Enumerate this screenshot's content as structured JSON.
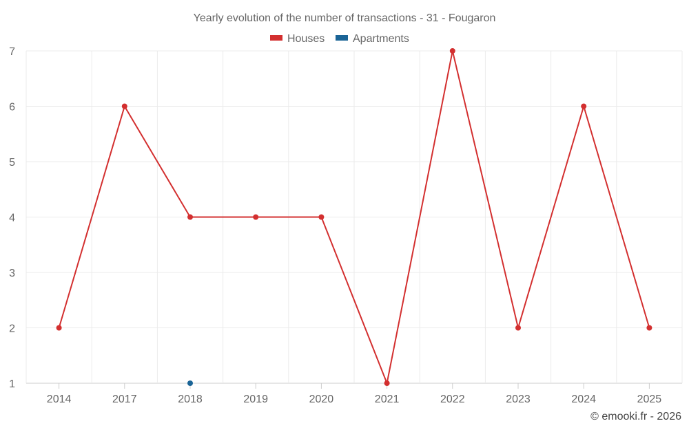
{
  "chart_data": {
    "type": "line",
    "title": "Yearly evolution of the number of transactions - 31 - Fougaron",
    "categories": [
      "2014",
      "2017",
      "2018",
      "2019",
      "2020",
      "2021",
      "2022",
      "2023",
      "2024",
      "2025"
    ],
    "series": [
      {
        "name": "Houses",
        "color": "#d32f2f",
        "values": [
          2,
          6,
          4,
          4,
          4,
          1,
          7,
          2,
          6,
          2
        ]
      },
      {
        "name": "Apartments",
        "color": "#1a6496",
        "values": [
          null,
          null,
          1,
          null,
          null,
          null,
          null,
          null,
          null,
          null
        ]
      }
    ],
    "yticks": [
      1,
      2,
      3,
      4,
      5,
      6,
      7
    ],
    "ylim": [
      1,
      7
    ],
    "legend_position": "top-center",
    "xlabel": "",
    "ylabel": ""
  },
  "credit": "© emooki.fr - 2026"
}
